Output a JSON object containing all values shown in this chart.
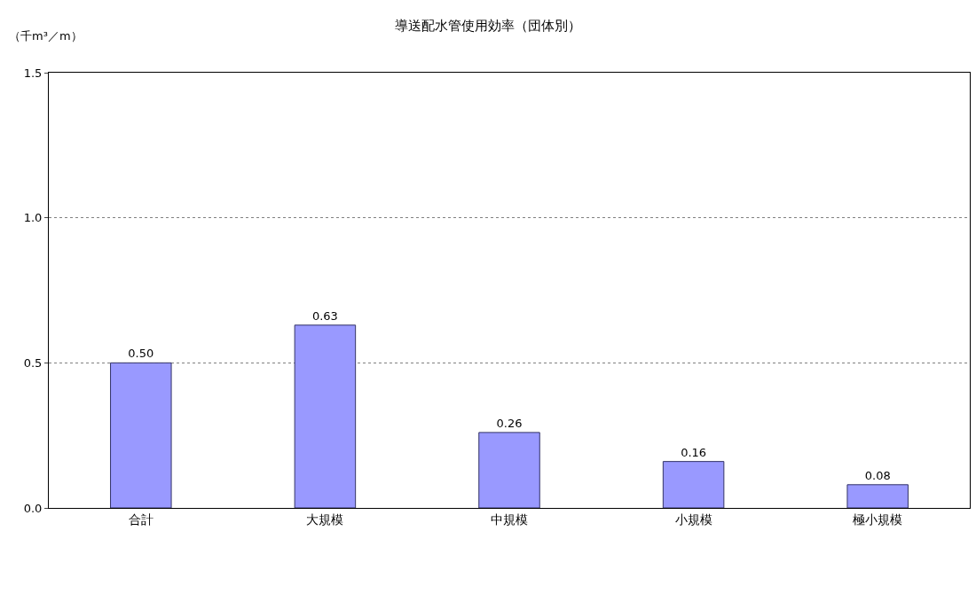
{
  "chart_data": {
    "type": "bar",
    "title": "導送配水管使用効率（団体別）",
    "ylabel": "（千m³／m）",
    "categories": [
      "合計",
      "大規模",
      "中規模",
      "小規模",
      "極小規模"
    ],
    "values": [
      0.5,
      0.63,
      0.26,
      0.16,
      0.08
    ],
    "value_labels": [
      "0.50",
      "0.63",
      "0.26",
      "0.16",
      "0.08"
    ],
    "color": "#9999ff",
    "ylim": [
      0,
      1.5
    ],
    "yticks": [
      {
        "value": 0,
        "label": "0.0"
      },
      {
        "value": 0.5,
        "label": "0.5"
      },
      {
        "value": 1.0,
        "label": "1.0"
      },
      {
        "value": 1.5,
        "label": "1.5"
      }
    ],
    "grid": "y"
  }
}
